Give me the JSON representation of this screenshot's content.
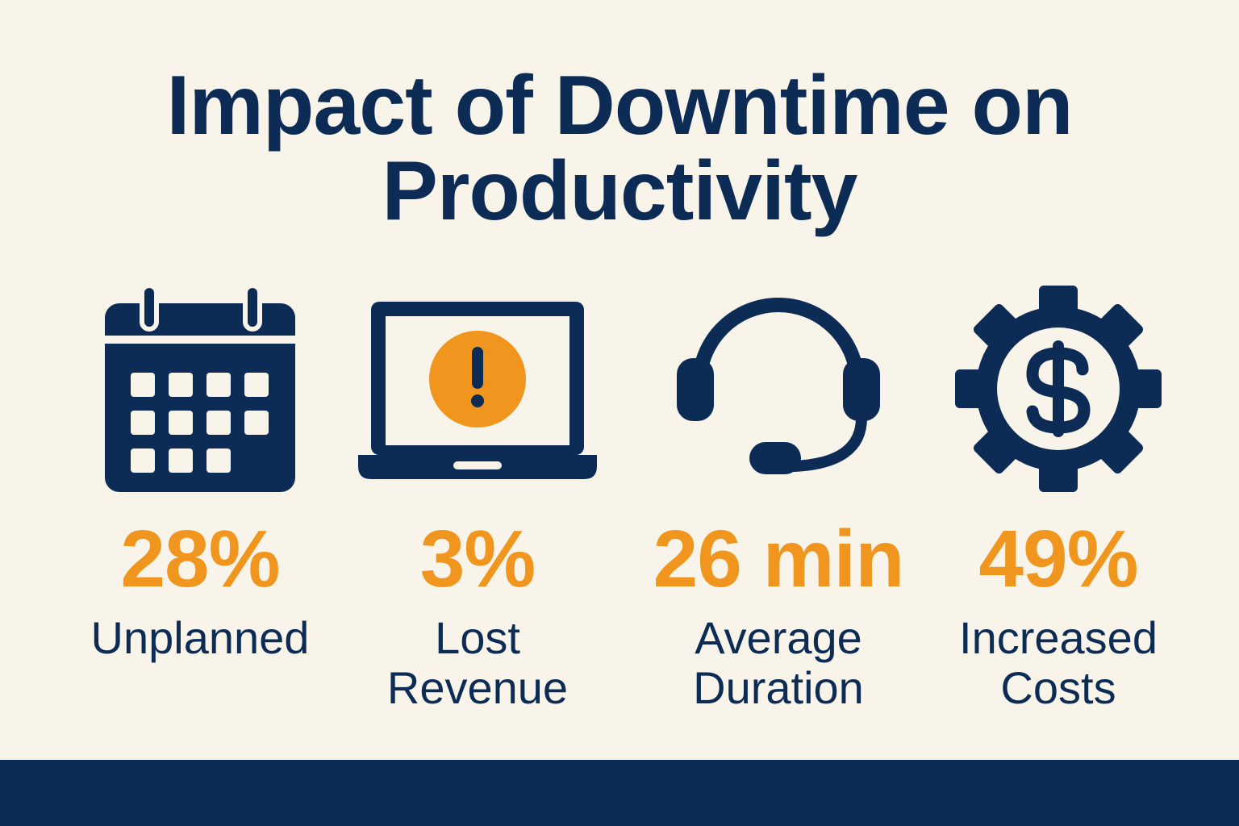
{
  "title": {
    "line1": "Impact of Downtime on",
    "line2": "Productivity"
  },
  "colors": {
    "background": "#f8f4ea",
    "navy": "#0c2b55",
    "orange": "#f0961f"
  },
  "stats": [
    {
      "icon": "calendar-icon",
      "value": "28%",
      "label_line1": "Unplanned",
      "label_line2": ""
    },
    {
      "icon": "laptop-alert-icon",
      "value": "3%",
      "label_line1": "Lost",
      "label_line2": "Revenue"
    },
    {
      "icon": "headset-icon",
      "value": "26 min",
      "label_line1": "Average",
      "label_line2": "Duration"
    },
    {
      "icon": "gear-dollar-icon",
      "value": "49%",
      "label_line1": "Increased",
      "label_line2": "Costs"
    }
  ]
}
